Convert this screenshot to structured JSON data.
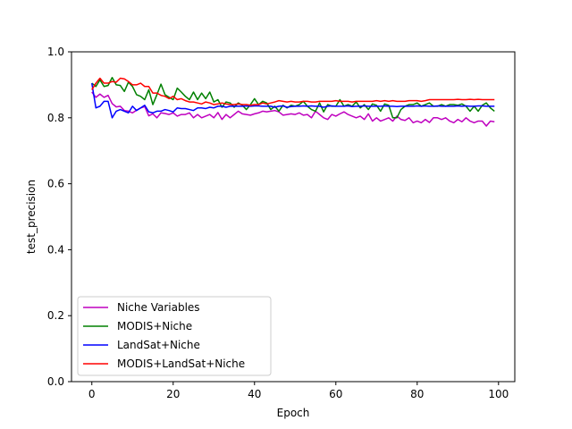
{
  "chart_data": {
    "type": "line",
    "title": "",
    "xlabel": "Epoch",
    "ylabel": "test_precision",
    "xlim": [
      -5,
      104
    ],
    "ylim": [
      0.0,
      1.0
    ],
    "xticks": [
      0,
      20,
      40,
      60,
      80,
      100
    ],
    "yticks": [
      0.0,
      0.2,
      0.4,
      0.6,
      0.8,
      1.0
    ],
    "xtick_labels": [
      "0",
      "20",
      "40",
      "60",
      "80",
      "100"
    ],
    "ytick_labels": [
      "0.0",
      "0.2",
      "0.4",
      "0.6",
      "0.8",
      "1.0"
    ],
    "grid": false,
    "legend_position": "lower-left",
    "series": [
      {
        "name": "Niche Variables",
        "color": "#bf00bf",
        "values": [
          0.878,
          0.862,
          0.872,
          0.862,
          0.868,
          0.843,
          0.833,
          0.835,
          0.822,
          0.82,
          0.815,
          0.823,
          0.83,
          0.834,
          0.806,
          0.812,
          0.8,
          0.815,
          0.813,
          0.81,
          0.815,
          0.805,
          0.81,
          0.81,
          0.815,
          0.8,
          0.81,
          0.8,
          0.805,
          0.81,
          0.8,
          0.816,
          0.795,
          0.81,
          0.8,
          0.81,
          0.82,
          0.812,
          0.81,
          0.808,
          0.812,
          0.815,
          0.82,
          0.818,
          0.82,
          0.822,
          0.818,
          0.808,
          0.81,
          0.812,
          0.81,
          0.815,
          0.808,
          0.81,
          0.8,
          0.82,
          0.81,
          0.8,
          0.795,
          0.81,
          0.805,
          0.812,
          0.818,
          0.81,
          0.805,
          0.8,
          0.805,
          0.795,
          0.812,
          0.79,
          0.8,
          0.79,
          0.795,
          0.8,
          0.79,
          0.805,
          0.795,
          0.792,
          0.8,
          0.785,
          0.79,
          0.785,
          0.795,
          0.786,
          0.8,
          0.8,
          0.795,
          0.8,
          0.79,
          0.785,
          0.795,
          0.788,
          0.8,
          0.79,
          0.785,
          0.79,
          0.79,
          0.775,
          0.79,
          0.788
        ]
      },
      {
        "name": "MODIS+Niche",
        "color": "#008000",
        "values": [
          0.905,
          0.895,
          0.915,
          0.895,
          0.898,
          0.922,
          0.9,
          0.898,
          0.88,
          0.908,
          0.895,
          0.87,
          0.865,
          0.855,
          0.885,
          0.84,
          0.87,
          0.902,
          0.87,
          0.862,
          0.855,
          0.89,
          0.878,
          0.865,
          0.855,
          0.878,
          0.855,
          0.875,
          0.858,
          0.878,
          0.848,
          0.855,
          0.832,
          0.848,
          0.845,
          0.832,
          0.845,
          0.838,
          0.825,
          0.84,
          0.858,
          0.84,
          0.85,
          0.845,
          0.825,
          0.835,
          0.82,
          0.838,
          0.83,
          0.838,
          0.835,
          0.84,
          0.85,
          0.835,
          0.825,
          0.82,
          0.845,
          0.818,
          0.84,
          0.835,
          0.835,
          0.855,
          0.835,
          0.84,
          0.835,
          0.848,
          0.83,
          0.84,
          0.825,
          0.842,
          0.838,
          0.82,
          0.842,
          0.838,
          0.8,
          0.8,
          0.825,
          0.835,
          0.84,
          0.84,
          0.845,
          0.835,
          0.84,
          0.845,
          0.835,
          0.835,
          0.84,
          0.835,
          0.84,
          0.84,
          0.838,
          0.842,
          0.835,
          0.82,
          0.835,
          0.82,
          0.838,
          0.845,
          0.83,
          0.82
        ]
      },
      {
        "name": "LandSat+Niche",
        "color": "#0000ff",
        "values": [
          0.905,
          0.83,
          0.835,
          0.85,
          0.85,
          0.8,
          0.82,
          0.825,
          0.82,
          0.815,
          0.835,
          0.822,
          0.83,
          0.838,
          0.818,
          0.815,
          0.82,
          0.82,
          0.825,
          0.822,
          0.818,
          0.83,
          0.828,
          0.828,
          0.825,
          0.822,
          0.83,
          0.83,
          0.828,
          0.832,
          0.83,
          0.835,
          0.835,
          0.832,
          0.835,
          0.835,
          0.835,
          0.835,
          0.836,
          0.835,
          0.836,
          0.836,
          0.835,
          0.835,
          0.835,
          0.832,
          0.835,
          0.836,
          0.832,
          0.834,
          0.835,
          0.835,
          0.836,
          0.835,
          0.836,
          0.835,
          0.835,
          0.832,
          0.835,
          0.836,
          0.835,
          0.835,
          0.835,
          0.836,
          0.834,
          0.835,
          0.835,
          0.836,
          0.835,
          0.835,
          0.835,
          0.835,
          0.836,
          0.835,
          0.835,
          0.834,
          0.835,
          0.835,
          0.835,
          0.835,
          0.836,
          0.835,
          0.836,
          0.835,
          0.835,
          0.836,
          0.835,
          0.835,
          0.835,
          0.835,
          0.836,
          0.835,
          0.836,
          0.835,
          0.835,
          0.836,
          0.836,
          0.835,
          0.835,
          0.835
        ]
      },
      {
        "name": "MODIS+LandSat+Niche",
        "color": "#ff0000",
        "values": [
          0.885,
          0.905,
          0.92,
          0.905,
          0.905,
          0.91,
          0.908,
          0.92,
          0.918,
          0.91,
          0.9,
          0.9,
          0.905,
          0.895,
          0.895,
          0.875,
          0.875,
          0.868,
          0.865,
          0.858,
          0.865,
          0.855,
          0.858,
          0.852,
          0.848,
          0.848,
          0.845,
          0.842,
          0.848,
          0.845,
          0.84,
          0.842,
          0.845,
          0.842,
          0.84,
          0.84,
          0.842,
          0.84,
          0.84,
          0.838,
          0.84,
          0.84,
          0.845,
          0.842,
          0.845,
          0.848,
          0.852,
          0.85,
          0.848,
          0.85,
          0.848,
          0.848,
          0.85,
          0.85,
          0.848,
          0.848,
          0.85,
          0.85,
          0.85,
          0.85,
          0.852,
          0.85,
          0.85,
          0.85,
          0.848,
          0.85,
          0.85,
          0.85,
          0.85,
          0.85,
          0.852,
          0.85,
          0.852,
          0.85,
          0.852,
          0.85,
          0.85,
          0.85,
          0.852,
          0.852,
          0.852,
          0.85,
          0.852,
          0.855,
          0.855,
          0.855,
          0.855,
          0.855,
          0.855,
          0.855,
          0.856,
          0.855,
          0.855,
          0.856,
          0.855,
          0.856,
          0.855,
          0.855,
          0.855,
          0.855
        ]
      }
    ]
  }
}
